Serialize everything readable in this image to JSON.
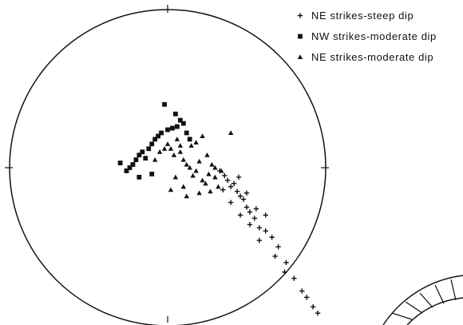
{
  "chart_data": {
    "type": "scatter",
    "projection": "equal-area stereonet (poles to planes)",
    "title": "",
    "xlabel": "",
    "ylabel": "",
    "xlim": [
      -1,
      1
    ],
    "ylim": [
      -1,
      1
    ],
    "grid": false,
    "legend_position": "top-right",
    "series": [
      {
        "name": "NE strikes-steep dip",
        "marker": "plus",
        "color": "#111111",
        "x": [
          0.33,
          0.36,
          0.38,
          0.4,
          0.42,
          0.44,
          0.46,
          0.48,
          0.5,
          0.52,
          0.55,
          0.58,
          0.62,
          0.66,
          0.7,
          0.75,
          0.8,
          0.85,
          0.88,
          0.92,
          0.95,
          0.35,
          0.4,
          0.45,
          0.5,
          0.56,
          0.62,
          0.68,
          0.74,
          0.52,
          0.58,
          0.46
        ],
        "y": [
          -0.02,
          -0.05,
          -0.08,
          -0.12,
          -0.1,
          -0.15,
          -0.18,
          -0.2,
          -0.25,
          -0.28,
          -0.32,
          -0.38,
          -0.3,
          -0.44,
          -0.5,
          -0.6,
          -0.7,
          -0.78,
          -0.82,
          -0.88,
          -0.92,
          -0.14,
          -0.22,
          -0.06,
          -0.16,
          -0.26,
          -0.4,
          -0.56,
          -0.66,
          -0.36,
          -0.46,
          -0.3
        ]
      },
      {
        "name": "NW strikes-moderate dip",
        "marker": "square",
        "color": "#111111",
        "x": [
          -0.22,
          -0.2,
          -0.18,
          -0.16,
          -0.14,
          -0.12,
          -0.1,
          -0.08,
          -0.06,
          -0.04,
          0.0,
          0.03,
          0.06,
          0.08,
          0.1,
          0.12,
          -0.24,
          -0.3,
          -0.26,
          -0.02,
          0.05,
          0.14,
          -0.1,
          -0.18
        ],
        "y": [
          0.02,
          0.05,
          0.08,
          0.1,
          0.06,
          0.12,
          0.15,
          0.18,
          0.2,
          0.22,
          0.24,
          0.25,
          0.26,
          0.3,
          0.28,
          0.22,
          0.0,
          0.03,
          -0.02,
          0.4,
          0.34,
          0.18,
          -0.04,
          -0.06
        ]
      },
      {
        "name": "NE strikes-moderate dip",
        "marker": "triangle",
        "color": "#111111",
        "x": [
          -0.05,
          -0.02,
          0.0,
          0.02,
          0.04,
          0.06,
          0.08,
          0.1,
          0.12,
          0.14,
          0.16,
          0.18,
          0.2,
          0.22,
          0.24,
          0.26,
          0.28,
          0.3,
          0.32,
          0.34,
          -0.08,
          0.05,
          0.1,
          0.15,
          0.2,
          0.25,
          0.3,
          0.18,
          0.12,
          0.22,
          0.08,
          0.4,
          0.02,
          0.27
        ],
        "y": [
          0.1,
          0.12,
          0.15,
          0.12,
          0.08,
          0.18,
          0.1,
          0.05,
          0.02,
          0.0,
          -0.05,
          -0.02,
          0.04,
          -0.08,
          -0.1,
          -0.04,
          0.02,
          -0.06,
          -0.12,
          -0.02,
          0.05,
          -0.06,
          -0.12,
          0.14,
          -0.16,
          0.08,
          0.0,
          0.16,
          -0.18,
          0.2,
          0.14,
          0.22,
          -0.14,
          -0.15
        ]
      }
    ]
  }
}
